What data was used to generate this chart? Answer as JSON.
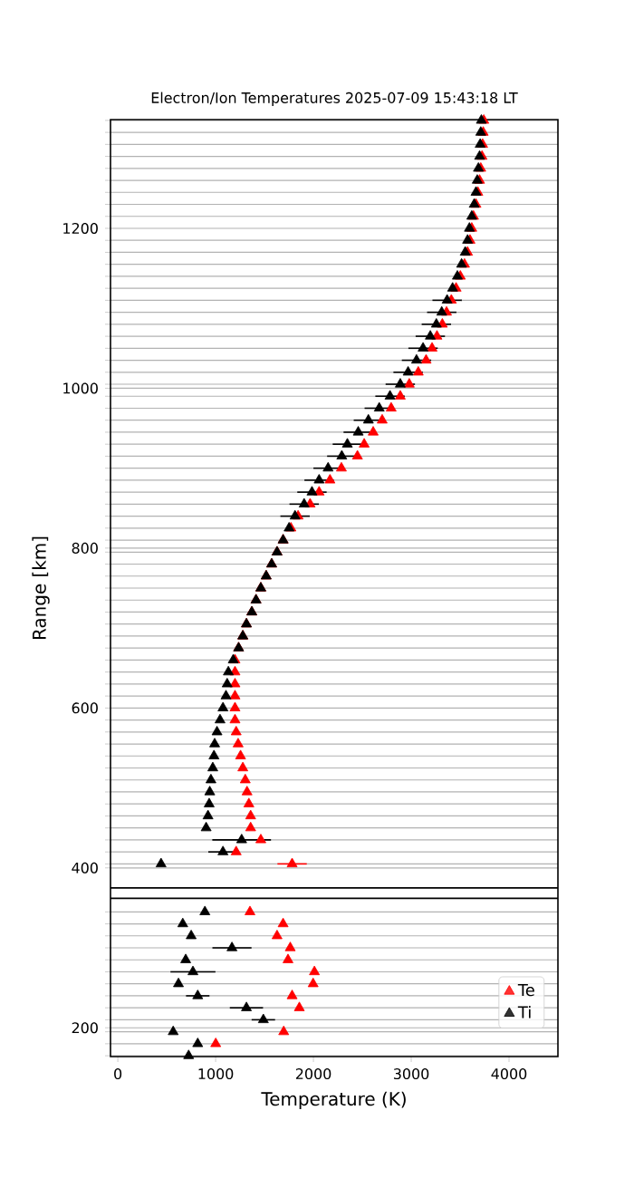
{
  "chart_data": {
    "type": "scatter",
    "title": "Electron/Ion Temperatures 2025-07-09 15:43:18 LT",
    "xlabel": "Temperature (K)",
    "ylabel": "Range [km]",
    "xlim": [
      -75,
      4500
    ],
    "ylim": [
      164,
      1336
    ],
    "xticks": [
      0,
      1000,
      2000,
      3000,
      4000
    ],
    "yticks": [
      200,
      400,
      600,
      800,
      1000,
      1200,
      {
        "value": 165,
        "label": null
      },
      {
        "value": 180,
        "label": null
      },
      {
        "value": 195,
        "label": null
      },
      {
        "value": 210,
        "label": null
      },
      {
        "value": 225,
        "label": null
      },
      {
        "value": 240,
        "label": null
      },
      {
        "value": 255,
        "label": null
      },
      {
        "value": 270,
        "label": null
      },
      {
        "value": 285,
        "label": null
      },
      {
        "value": 300,
        "label": null
      },
      {
        "value": 315,
        "label": null
      },
      {
        "value": 330,
        "label": null
      },
      {
        "value": 345,
        "label": null
      },
      {
        "value": 405,
        "label": null
      },
      {
        "value": 420,
        "label": null
      },
      {
        "value": 435,
        "label": null
      },
      {
        "value": 450,
        "label": null
      },
      {
        "value": 465,
        "label": null
      },
      {
        "value": 480,
        "label": null
      },
      {
        "value": 495,
        "label": null
      },
      {
        "value": 510,
        "label": null
      },
      {
        "value": 525,
        "label": null
      },
      {
        "value": 540,
        "label": null
      },
      {
        "value": 555,
        "label": null
      },
      {
        "value": 570,
        "label": null
      },
      {
        "value": 585,
        "label": null
      },
      {
        "value": 615,
        "label": null
      },
      {
        "value": 630,
        "label": null
      },
      {
        "value": 645,
        "label": null
      },
      {
        "value": 660,
        "label": null
      },
      {
        "value": 675,
        "label": null
      },
      {
        "value": 690,
        "label": null
      },
      {
        "value": 705,
        "label": null
      },
      {
        "value": 720,
        "label": null
      },
      {
        "value": 735,
        "label": null
      },
      {
        "value": 750,
        "label": null
      },
      {
        "value": 765,
        "label": null
      },
      {
        "value": 780,
        "label": null
      },
      {
        "value": 795,
        "label": null
      },
      {
        "value": 810,
        "label": null
      },
      {
        "value": 825,
        "label": null
      },
      {
        "value": 840,
        "label": null
      },
      {
        "value": 855,
        "label": null
      },
      {
        "value": 870,
        "label": null
      },
      {
        "value": 885,
        "label": null
      },
      {
        "value": 900,
        "label": null
      },
      {
        "value": 915,
        "label": null
      },
      {
        "value": 930,
        "label": null
      },
      {
        "value": 945,
        "label": null
      },
      {
        "value": 960,
        "label": null
      },
      {
        "value": 975,
        "label": null
      },
      {
        "value": 990,
        "label": null
      },
      {
        "value": 1005,
        "label": null
      },
      {
        "value": 1020,
        "label": null
      },
      {
        "value": 1035,
        "label": null
      },
      {
        "value": 1050,
        "label": null
      },
      {
        "value": 1065,
        "label": null
      },
      {
        "value": 1080,
        "label": null
      },
      {
        "value": 1095,
        "label": null
      },
      {
        "value": 1110,
        "label": null
      },
      {
        "value": 1125,
        "label": null
      },
      {
        "value": 1140,
        "label": null
      },
      {
        "value": 1155,
        "label": null
      },
      {
        "value": 1170,
        "label": null
      },
      {
        "value": 1185,
        "label": null
      },
      {
        "value": 1215,
        "label": null
      },
      {
        "value": 1230,
        "label": null
      },
      {
        "value": 1245,
        "label": null
      },
      {
        "value": 1260,
        "label": null
      },
      {
        "value": 1275,
        "label": null
      },
      {
        "value": 1290,
        "label": null
      },
      {
        "value": 1305,
        "label": null
      },
      {
        "value": 1320,
        "label": null
      },
      {
        "value": 1335,
        "label": null
      }
    ],
    "grid": "y",
    "legend": "bottom right",
    "marker": "triangle",
    "ref_lines": [
      {
        "axis": "y",
        "value": 362,
        "color": "#000000"
      },
      {
        "axis": "y",
        "value": 375,
        "color": "#000000"
      }
    ],
    "series": [
      {
        "name": "Te",
        "color": "#ff0000",
        "values": [
          180,
          195,
          225,
          240,
          255,
          270,
          285,
          300,
          315,
          330,
          345,
          405,
          420,
          435,
          450,
          465,
          480,
          495,
          510,
          525,
          540,
          555,
          570,
          585,
          600,
          615,
          630,
          645,
          660,
          675,
          690,
          705,
          720,
          735,
          750,
          765,
          780,
          795,
          810,
          825,
          840,
          855,
          870,
          885,
          900,
          915,
          930,
          945,
          960,
          975,
          990,
          1005,
          1020,
          1035,
          1050,
          1065,
          1080,
          1095,
          1110,
          1125,
          1140,
          1155,
          1170,
          1185,
          1200,
          1215,
          1230,
          1245,
          1260,
          1275,
          1290,
          1305,
          1320,
          1335
        ],
        "x": [
          1001,
          1696,
          1856,
          1782,
          1997,
          2010,
          1740,
          1763,
          1628,
          1690,
          1351,
          1782,
          1210,
          1462,
          1358,
          1358,
          1340,
          1321,
          1303,
          1278,
          1255,
          1230,
          1210,
          1198,
          1198,
          1198,
          1198,
          1198,
          1198,
          1235,
          1278,
          1315,
          1370,
          1413,
          1462,
          1517,
          1573,
          1628,
          1690,
          1770,
          1843,
          1966,
          2058,
          2169,
          2286,
          2450,
          2519,
          2611,
          2703,
          2795,
          2888,
          2980,
          3072,
          3152,
          3213,
          3263,
          3318,
          3361,
          3410,
          3459,
          3502,
          3545,
          3576,
          3601,
          3619,
          3637,
          3662,
          3681,
          3699,
          3711,
          3724,
          3730,
          3736,
          3742
        ],
        "xerrors": [
          null,
          null,
          null,
          null,
          null,
          null,
          null,
          null,
          null,
          null,
          null,
          150,
          null,
          null,
          null,
          null,
          null,
          null,
          null,
          null,
          null,
          null,
          null,
          null,
          null,
          null,
          null,
          null,
          null,
          null,
          null,
          null,
          null,
          null,
          null,
          null,
          null,
          null,
          null,
          null,
          null,
          null,
          null,
          null,
          null,
          null,
          null,
          null,
          null,
          null,
          null,
          null,
          null,
          null,
          null,
          null,
          null,
          null,
          null,
          null,
          null,
          null,
          null,
          null,
          null,
          null,
          null,
          null,
          null,
          null,
          null,
          null,
          null,
          null
        ]
      },
      {
        "name": "Ti",
        "color": "#000000",
        "values": [
          165,
          180,
          195,
          210,
          225,
          240,
          255,
          270,
          285,
          300,
          315,
          330,
          345,
          405,
          420,
          435,
          450,
          465,
          480,
          495,
          510,
          525,
          540,
          555,
          570,
          585,
          600,
          615,
          630,
          645,
          660,
          675,
          690,
          705,
          720,
          735,
          750,
          765,
          780,
          795,
          810,
          825,
          840,
          855,
          870,
          885,
          900,
          915,
          930,
          945,
          960,
          975,
          990,
          1005,
          1020,
          1035,
          1050,
          1065,
          1080,
          1095,
          1110,
          1125,
          1140,
          1155,
          1170,
          1185,
          1200,
          1215,
          1230,
          1245,
          1260,
          1275,
          1290,
          1305,
          1320,
          1335
        ],
        "x": [
          724,
          817,
          566,
          1488,
          1315,
          817,
          620,
          768,
          694,
          1167,
          750,
          664,
          890,
          442,
          1075,
          1266,
          903,
          922,
          934,
          940,
          952,
          971,
          983,
          990,
          1014,
          1045,
          1075,
          1106,
          1118,
          1130,
          1180,
          1235,
          1278,
          1315,
          1370,
          1413,
          1462,
          1517,
          1573,
          1628,
          1690,
          1751,
          1812,
          1905,
          1985,
          2058,
          2150,
          2290,
          2347,
          2458,
          2562,
          2673,
          2783,
          2888,
          2968,
          3054,
          3121,
          3195,
          3257,
          3312,
          3367,
          3423,
          3472,
          3515,
          3552,
          3576,
          3595,
          3619,
          3644,
          3662,
          3675,
          3687,
          3699,
          3705,
          3711,
          3717
        ],
        "xerrors": [
          null,
          null,
          null,
          120,
          170,
          120,
          null,
          230,
          null,
          200,
          null,
          null,
          null,
          null,
          150,
          300,
          null,
          null,
          null,
          null,
          null,
          null,
          null,
          null,
          null,
          null,
          null,
          null,
          null,
          null,
          null,
          null,
          null,
          null,
          null,
          null,
          null,
          null,
          null,
          null,
          null,
          null,
          150,
          150,
          150,
          150,
          150,
          150,
          150,
          150,
          150,
          150,
          150,
          150,
          150,
          150,
          150,
          150,
          150,
          150,
          150,
          null,
          null,
          null,
          null,
          null,
          null,
          null,
          null,
          null,
          null,
          null,
          null,
          null,
          null,
          null
        ]
      }
    ]
  }
}
